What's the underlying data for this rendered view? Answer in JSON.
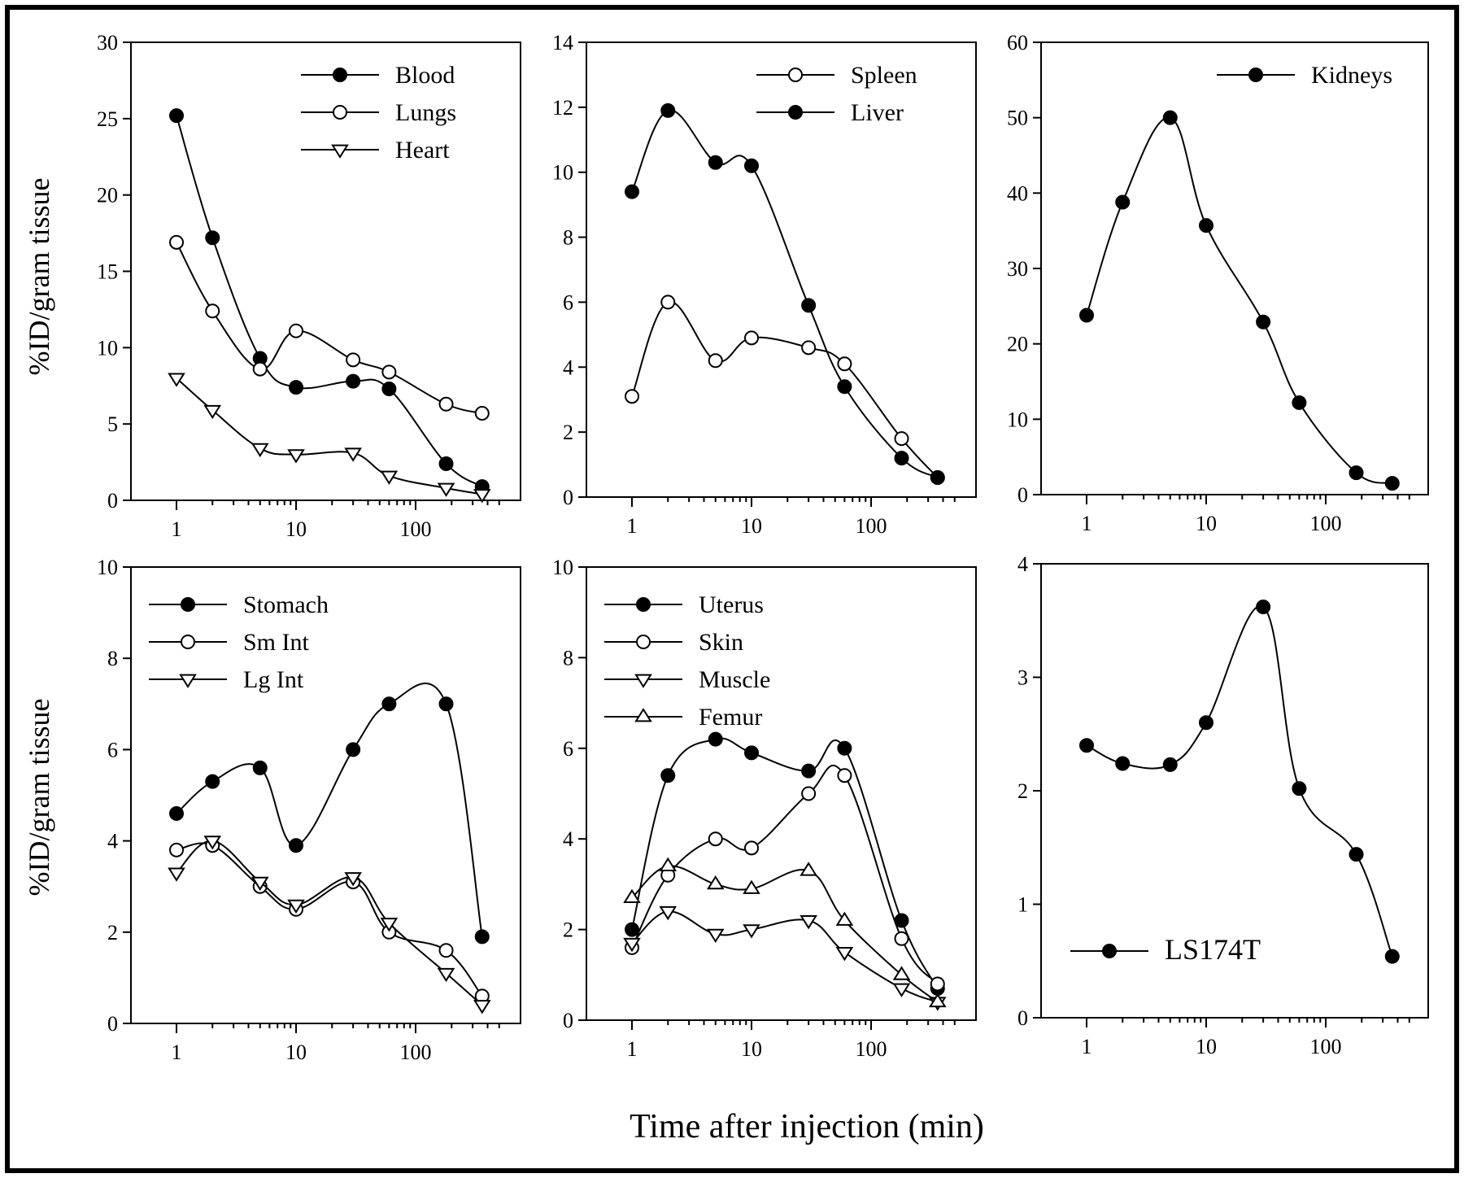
{
  "figure": {
    "xlabel": "Time after injection (min)",
    "ylabel": "%ID/gram tissue"
  },
  "chart_data": [
    {
      "type": "line",
      "xscale": "log",
      "xticks": [
        "1",
        "10",
        "100"
      ],
      "ylim": [
        0,
        30
      ],
      "yticks": [
        "0",
        "5",
        "10",
        "15",
        "20",
        "25",
        "30"
      ],
      "ylabel": "%ID/gram tissue",
      "legend": "top-right",
      "x": [
        1,
        2,
        5,
        10,
        30,
        60,
        180,
        360
      ],
      "series": [
        {
          "name": "Blood",
          "marker": "filled-circle",
          "values": [
            25.2,
            17.2,
            9.3,
            7.4,
            7.8,
            7.3,
            2.4,
            0.9
          ]
        },
        {
          "name": "Lungs",
          "marker": "open-circle",
          "values": [
            16.9,
            12.4,
            8.6,
            11.1,
            9.2,
            8.4,
            6.3,
            5.7
          ]
        },
        {
          "name": "Heart",
          "marker": "open-triangle-down",
          "values": [
            8.0,
            5.9,
            3.4,
            3.0,
            3.1,
            1.6,
            0.8,
            0.4
          ]
        }
      ]
    },
    {
      "type": "line",
      "xscale": "log",
      "xticks": [
        "1",
        "10",
        "100"
      ],
      "ylim": [
        0,
        14
      ],
      "yticks": [
        "0",
        "2",
        "4",
        "6",
        "8",
        "10",
        "12",
        "14"
      ],
      "legend": "top-right",
      "x": [
        1,
        2,
        5,
        10,
        30,
        60,
        180,
        360
      ],
      "series": [
        {
          "name": "Spleen",
          "marker": "open-circle",
          "values": [
            3.1,
            6.0,
            4.2,
            4.9,
            4.6,
            4.1,
            1.8,
            0.6
          ]
        },
        {
          "name": "Liver",
          "marker": "filled-circle",
          "values": [
            9.4,
            11.9,
            10.3,
            10.2,
            5.9,
            3.4,
            1.2,
            0.6
          ]
        }
      ]
    },
    {
      "type": "line",
      "xscale": "log",
      "xticks": [
        "1",
        "10",
        "100"
      ],
      "ylim": [
        0,
        60
      ],
      "yticks": [
        "0",
        "10",
        "20",
        "30",
        "40",
        "50",
        "60"
      ],
      "legend": "top-right",
      "x": [
        1,
        2,
        5,
        10,
        30,
        60,
        180,
        360
      ],
      "series": [
        {
          "name": "Kidneys",
          "marker": "filled-circle",
          "values": [
            23.8,
            38.8,
            50.0,
            35.7,
            22.9,
            12.2,
            2.9,
            1.5
          ]
        }
      ]
    },
    {
      "type": "line",
      "xscale": "log",
      "xticks": [
        "1",
        "10",
        "100"
      ],
      "ylim": [
        0,
        10
      ],
      "yticks": [
        "0",
        "2",
        "4",
        "6",
        "8",
        "10"
      ],
      "ylabel": "%ID/gram tissue",
      "legend": "top-left",
      "x": [
        1,
        2,
        5,
        10,
        30,
        60,
        180,
        360
      ],
      "series": [
        {
          "name": "Stomach",
          "marker": "filled-circle",
          "values": [
            4.6,
            5.3,
            5.6,
            3.9,
            6.0,
            7.0,
            7.0,
            1.9
          ]
        },
        {
          "name": "Sm Int",
          "marker": "open-circle",
          "values": [
            3.8,
            3.9,
            3.0,
            2.5,
            3.1,
            2.0,
            1.6,
            0.6
          ]
        },
        {
          "name": "Lg Int",
          "marker": "open-triangle-down",
          "values": [
            3.3,
            4.0,
            3.1,
            2.6,
            3.2,
            2.2,
            1.1,
            0.4
          ]
        }
      ]
    },
    {
      "type": "line",
      "xscale": "log",
      "xticks": [
        "1",
        "10",
        "100"
      ],
      "ylim": [
        0,
        10
      ],
      "yticks": [
        "0",
        "2",
        "4",
        "6",
        "8",
        "10"
      ],
      "legend": "top-left",
      "x": [
        1,
        2,
        5,
        10,
        30,
        60,
        180,
        360
      ],
      "series": [
        {
          "name": "Uterus",
          "marker": "filled-circle",
          "values": [
            2.0,
            5.4,
            6.2,
            5.9,
            5.5,
            6.0,
            2.2,
            0.7
          ]
        },
        {
          "name": "Skin",
          "marker": "open-circle",
          "values": [
            1.6,
            3.2,
            4.0,
            3.8,
            5.0,
            5.4,
            1.8,
            0.8
          ]
        },
        {
          "name": "Muscle",
          "marker": "open-triangle-down",
          "values": [
            1.7,
            2.4,
            1.9,
            2.0,
            2.2,
            1.5,
            0.7,
            0.4
          ]
        },
        {
          "name": "Femur",
          "marker": "open-triangle-up",
          "values": [
            2.7,
            3.4,
            3.0,
            2.9,
            3.3,
            2.2,
            1.0,
            0.4
          ]
        }
      ]
    },
    {
      "type": "line",
      "xscale": "log",
      "xticks": [
        "1",
        "10",
        "100"
      ],
      "ylim": [
        0,
        4
      ],
      "yticks": [
        "0",
        "1",
        "2",
        "3",
        "4"
      ],
      "legend": "bottom-left",
      "x": [
        1,
        2,
        5,
        10,
        30,
        60,
        180,
        360
      ],
      "series": [
        {
          "name": "LS174T",
          "marker": "filled-circle",
          "values": [
            2.4,
            2.24,
            2.23,
            2.6,
            3.62,
            2.02,
            1.44,
            0.54
          ]
        }
      ]
    }
  ]
}
